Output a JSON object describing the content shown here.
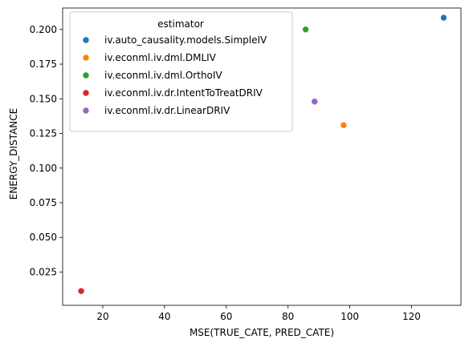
{
  "chart_data": {
    "type": "scatter",
    "xlabel": "MSE(TRUE_CATE, PRED_CATE)",
    "ylabel": "ENERGY_DISTANCE",
    "xlim": [
      7.0,
      136.0
    ],
    "ylim": [
      0.001,
      0.2155
    ],
    "xticks": [
      20,
      40,
      60,
      80,
      100,
      120
    ],
    "yticks": [
      0.025,
      0.05,
      0.075,
      0.1,
      0.125,
      0.15,
      0.175,
      0.2
    ],
    "grid": false,
    "legend": {
      "title": "estimator",
      "placement": "top-left"
    },
    "series": [
      {
        "name": "iv.auto_causality.models.SimpleIV",
        "color": "#1f77b4",
        "points": [
          {
            "x": 130.4,
            "y": 0.2085
          }
        ]
      },
      {
        "name": "iv.econml.iv.dml.DMLIV",
        "color": "#ff7f0e",
        "points": [
          {
            "x": 98.0,
            "y": 0.131
          }
        ]
      },
      {
        "name": "iv.econml.iv.dml.OrthoIV",
        "color": "#2ca02c",
        "points": [
          {
            "x": 85.7,
            "y": 0.2
          }
        ]
      },
      {
        "name": "iv.econml.iv.dr.IntentToTreatDRIV",
        "color": "#d62728",
        "points": [
          {
            "x": 13.0,
            "y": 0.0113
          }
        ]
      },
      {
        "name": "iv.econml.iv.dr.LinearDRIV",
        "color": "#9467bd",
        "points": [
          {
            "x": 88.6,
            "y": 0.148
          }
        ]
      }
    ]
  }
}
